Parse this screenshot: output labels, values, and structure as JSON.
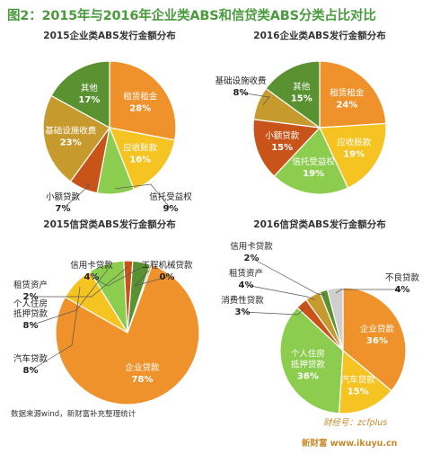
{
  "title": "图2：2015年与2016年企业类ABS和信贷类ABS分类占比对比",
  "source": "数据来源wind，新财富补充整理统计",
  "wechat": "财经号：zcfplus",
  "watermark": "新财富  www.ikuyu.cn",
  "chart_data": [
    {
      "type": "pie",
      "title": "2015企业类ABS发行金额分布",
      "slices": [
        {
          "label": "租赁租金",
          "value": 28,
          "pct_text": "28%",
          "color": "#f0922c",
          "position": "inside"
        },
        {
          "label": "应收账款",
          "value": 16,
          "pct_text": "16%",
          "color": "#f5c322",
          "position": "inside"
        },
        {
          "label": "信托受益权",
          "value": 9,
          "pct_text": "9%",
          "color": "#8ccd4f",
          "position": "outside"
        },
        {
          "label": "小额贷款",
          "value": 7,
          "pct_text": "7%",
          "color": "#c8541a",
          "position": "outside"
        },
        {
          "label": "基础设施收费",
          "value": 23,
          "pct_text": "23%",
          "color": "#c79a2e",
          "position": "inside"
        },
        {
          "label": "其他",
          "value": 17,
          "pct_text": "17%",
          "color": "#5a9232",
          "position": "inside"
        }
      ]
    },
    {
      "type": "pie",
      "title": "2016企业类ABS发行金额分布",
      "slices": [
        {
          "label": "租赁租金",
          "value": 24,
          "pct_text": "24%",
          "color": "#f0922c",
          "position": "inside"
        },
        {
          "label": "应收账款",
          "value": 19,
          "pct_text": "19%",
          "color": "#f5c322",
          "position": "inside"
        },
        {
          "label": "信托受益权",
          "value": 19,
          "pct_text": "19%",
          "color": "#8ccd4f",
          "position": "inside"
        },
        {
          "label": "小额贷款",
          "value": 15,
          "pct_text": "15%",
          "color": "#c8541a",
          "position": "inside"
        },
        {
          "label": "基础设施收费",
          "value": 8,
          "pct_text": "8%",
          "color": "#c79a2e",
          "position": "outside"
        },
        {
          "label": "其他",
          "value": 15,
          "pct_text": "15%",
          "color": "#5a9232",
          "position": "inside"
        }
      ]
    },
    {
      "type": "pie",
      "title": "2015信贷类ABS发行金额分布",
      "slices": [
        {
          "label": "企业贷款",
          "value": 78,
          "pct_text": "78%",
          "color": "#f0922c",
          "position": "inside"
        },
        {
          "label": "汽车贷款",
          "value": 8,
          "pct_text": "8%",
          "color": "#f5c322",
          "position": "outside"
        },
        {
          "label": "个人住房抵押贷款",
          "value": 8,
          "pct_text": "8%",
          "color": "#8ccd4f",
          "position": "outside"
        },
        {
          "label": "租赁资产",
          "value": 2,
          "pct_text": "2%",
          "color": "#c8541a",
          "position": "outside"
        },
        {
          "label": "信用卡贷款",
          "value": 4,
          "pct_text": "4%",
          "color": "#5a9232",
          "position": "outside"
        },
        {
          "label": "工程机械贷款",
          "value": 0.4,
          "pct_text": "0%",
          "color": "#c79a2e",
          "position": "outside"
        }
      ]
    },
    {
      "type": "pie",
      "title": "2016信贷类ABS发行金额分布",
      "slices": [
        {
          "label": "企业贷款",
          "value": 36,
          "pct_text": "36%",
          "color": "#f0922c",
          "position": "inside"
        },
        {
          "label": "汽车贷款",
          "value": 15,
          "pct_text": "15%",
          "color": "#f5c322",
          "position": "inside"
        },
        {
          "label": "个人住房抵押贷款",
          "value": 36,
          "pct_text": "36%",
          "color": "#8ccd4f",
          "position": "inside"
        },
        {
          "label": "消费性贷款",
          "value": 3,
          "pct_text": "3%",
          "color": "#c8541a",
          "position": "outside"
        },
        {
          "label": "租赁资产",
          "value": 4,
          "pct_text": "4%",
          "color": "#c79a2e",
          "position": "outside"
        },
        {
          "label": "信用卡贷款",
          "value": 2,
          "pct_text": "2%",
          "color": "#5a9232",
          "position": "outside"
        },
        {
          "label": "不良贷款",
          "value": 4,
          "pct_text": "4%",
          "color": "#cfcfcf",
          "position": "outside"
        }
      ]
    }
  ]
}
